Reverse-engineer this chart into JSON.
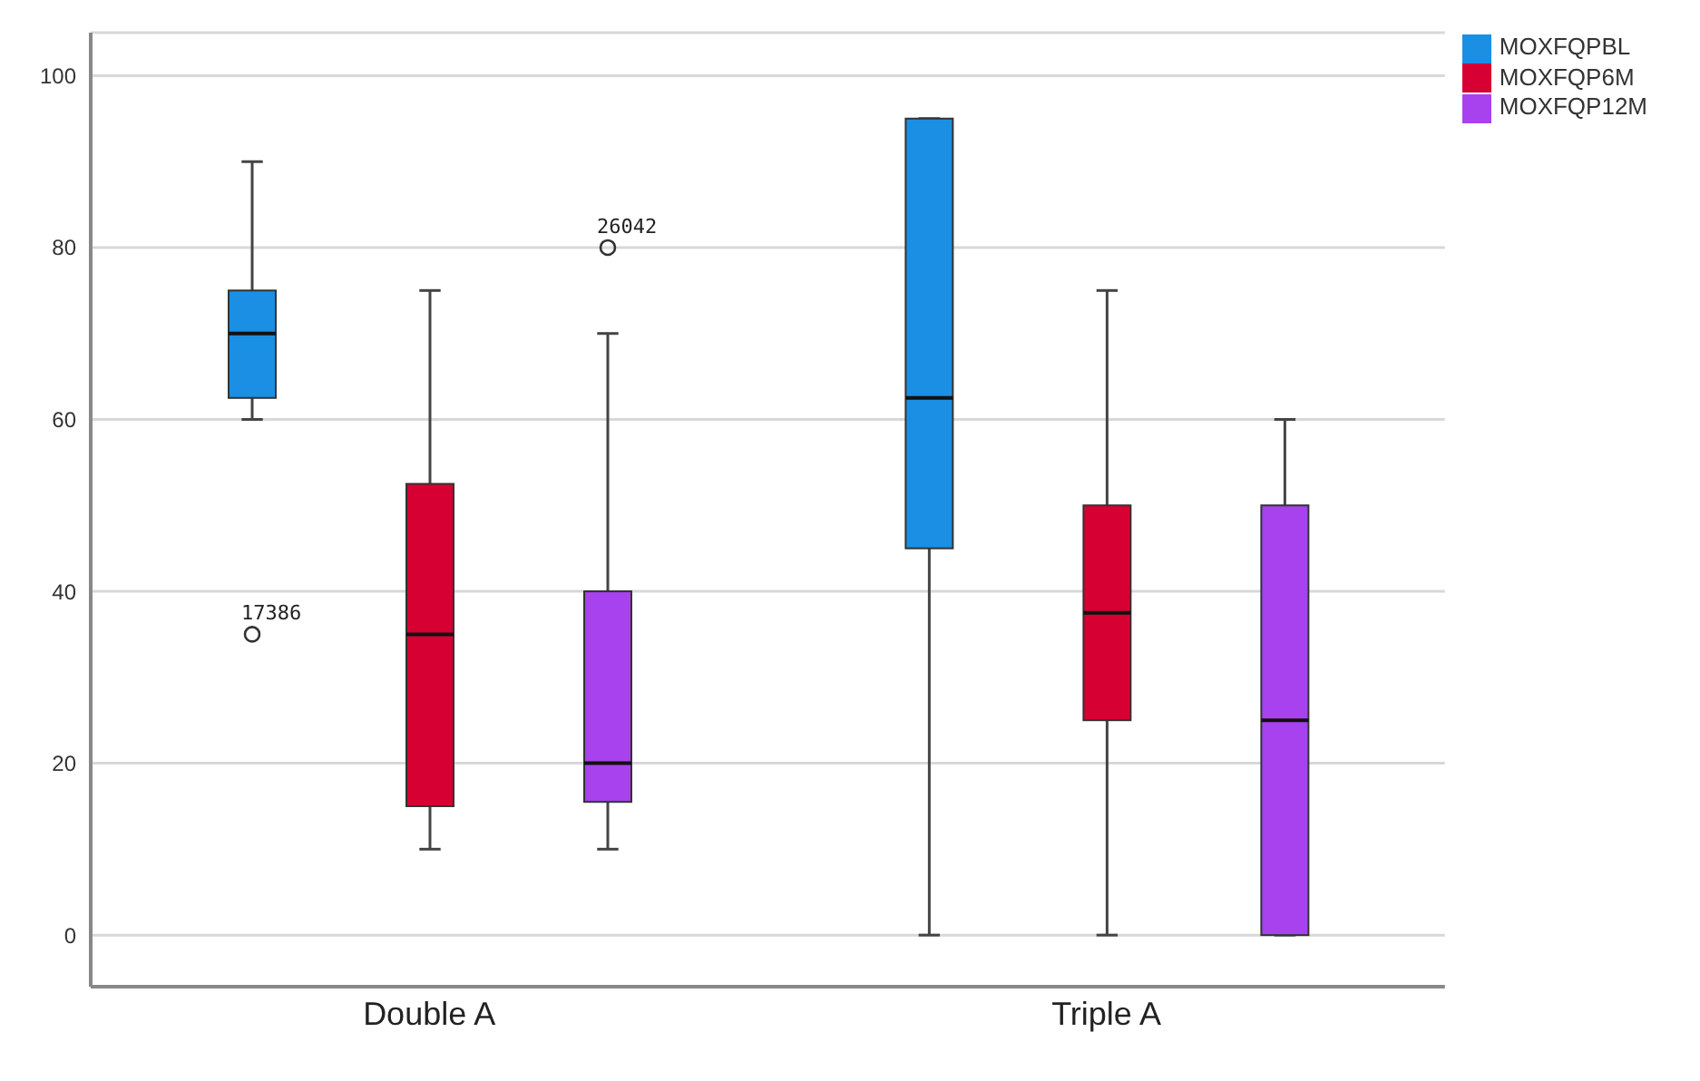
{
  "chart_data": {
    "type": "box",
    "categories": [
      "Double A",
      "Triple A"
    ],
    "series": [
      {
        "name": "MOXFQPBL",
        "color": "#1a8fe3",
        "boxes": [
          {
            "low": 60,
            "q1": 62.5,
            "median": 70,
            "q3": 75,
            "high": 90,
            "outliers": [
              35
            ]
          },
          {
            "low": 0,
            "q1": 45,
            "median": 62.5,
            "q3": 95,
            "high": 95
          }
        ]
      },
      {
        "name": "MOXFQP6M",
        "color": "#d70032",
        "boxes": [
          {
            "low": 10,
            "q1": 15,
            "median": 35,
            "q3": 52.5,
            "high": 75
          },
          {
            "low": 0,
            "q1": 25,
            "median": 37.5,
            "q3": 50,
            "high": 75
          }
        ]
      },
      {
        "name": "MOXFQP12M",
        "color": "#a742ee",
        "boxes": [
          {
            "low": 10,
            "q1": 15.5,
            "median": 20,
            "q3": 40,
            "high": 70,
            "outliers": [
              80
            ]
          },
          {
            "low": 0,
            "q1": 0,
            "median": 25,
            "q3": 50,
            "high": 60
          }
        ]
      }
    ],
    "ylim": [
      -6,
      105
    ],
    "yticks": [
      0,
      20,
      40,
      60,
      80,
      100
    ],
    "grid": "y",
    "legend": "top right",
    "annotations": [
      "17386",
      "26042"
    ]
  }
}
